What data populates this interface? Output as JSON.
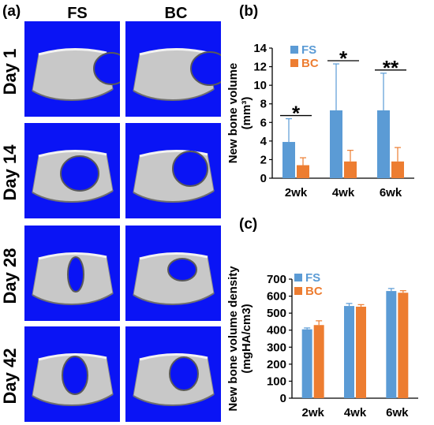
{
  "panels": {
    "a": "(a)",
    "b": "(b)",
    "c": "(c)"
  },
  "columns": [
    "FS",
    "BC"
  ],
  "rows": [
    "Day 1",
    "Day 14",
    "Day 28",
    "Day 42"
  ],
  "colors": {
    "fs": "#5b9bd5",
    "bc": "#ed7d31",
    "scan_background": "#0a14f5",
    "bone": "#c8c8c8"
  },
  "chart_data": [
    {
      "type": "bar",
      "panel": "(b)",
      "categories": [
        "2wk",
        "4wk",
        "6wk"
      ],
      "series": [
        {
          "name": "FS",
          "values": [
            3.9,
            7.3,
            7.3
          ],
          "errors": [
            2.5,
            5.0,
            4.0
          ]
        },
        {
          "name": "BC",
          "values": [
            1.4,
            1.8,
            1.8
          ],
          "errors": [
            0.8,
            1.2,
            1.5
          ]
        }
      ],
      "ylabel_line1": "New bone volume",
      "ylabel_line2": "(mm³)",
      "ylim": [
        0,
        14
      ],
      "yticks": [
        0,
        2,
        4,
        6,
        8,
        10,
        12,
        14
      ],
      "significance": [
        "*",
        "*",
        "**"
      ],
      "legend": "top-left"
    },
    {
      "type": "bar",
      "panel": "(c)",
      "categories": [
        "2wk",
        "4wk",
        "6wk"
      ],
      "series": [
        {
          "name": "FS",
          "values": [
            405,
            542,
            630
          ],
          "errors": [
            8,
            15,
            15
          ]
        },
        {
          "name": "BC",
          "values": [
            430,
            538,
            620
          ],
          "errors": [
            25,
            12,
            12
          ]
        }
      ],
      "ylabel_line1": "New bone volume density",
      "ylabel_line2": "(mgHA/cm3)",
      "ylim": [
        0,
        700
      ],
      "yticks": [
        0,
        100,
        200,
        300,
        400,
        500,
        600,
        700
      ],
      "legend": "top-left"
    }
  ]
}
